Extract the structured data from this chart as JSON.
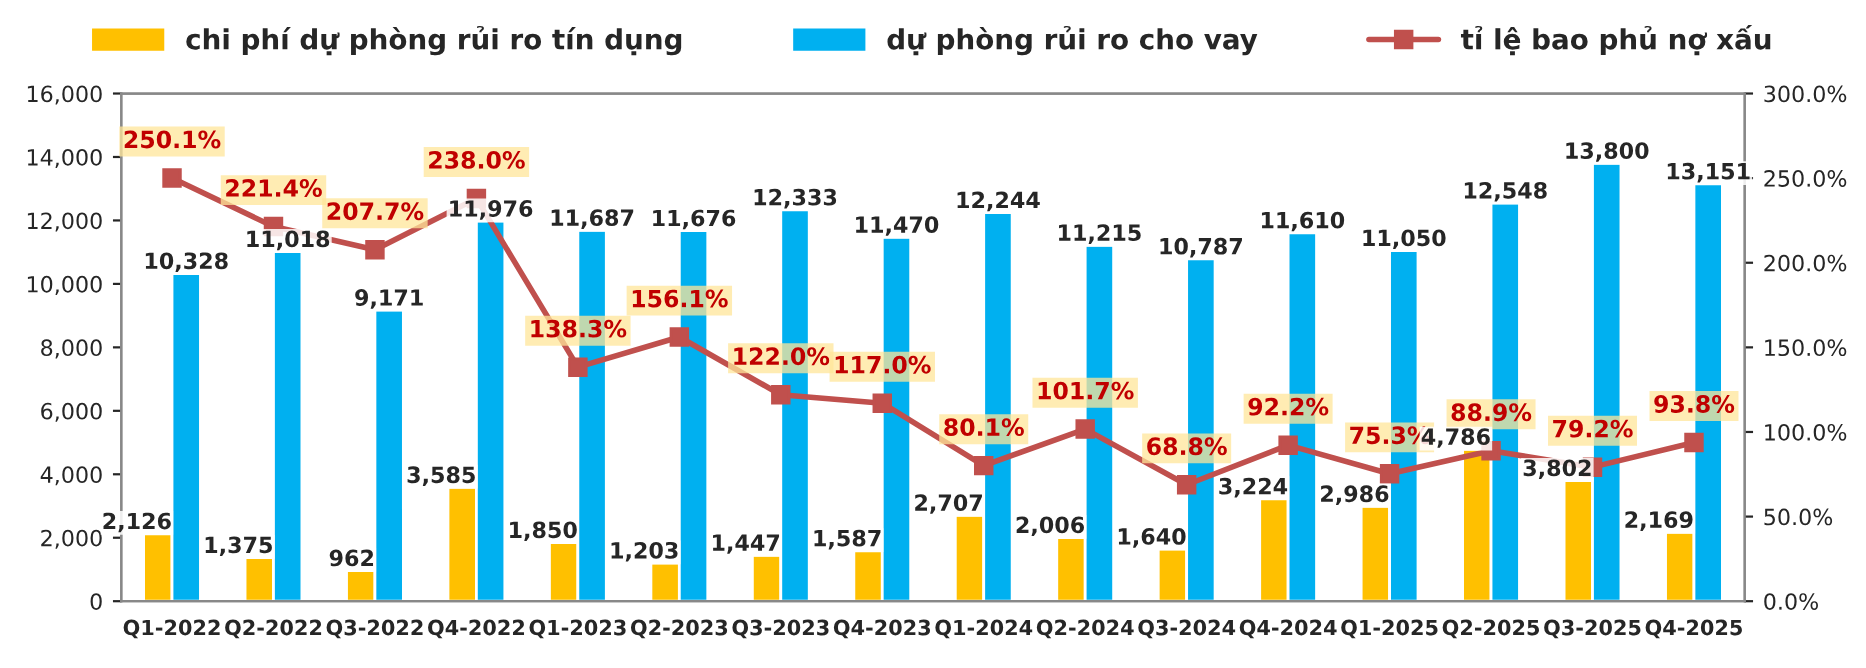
{
  "chart_data": {
    "type": "bar",
    "categories": [
      "Q1-2022",
      "Q2-2022",
      "Q3-2022",
      "Q4-2022",
      "Q1-2023",
      "Q2-2023",
      "Q3-2023",
      "Q4-2023",
      "Q1-2024",
      "Q2-2024",
      "Q3-2024",
      "Q4-2024",
      "Q1-2025",
      "Q2-2025",
      "Q3-2025",
      "Q4-2025"
    ],
    "series": [
      {
        "name": "chi phí dự phòng rủi ro tín dụng",
        "color": "#ffc000",
        "values": [
          2126,
          1375,
          962,
          3585,
          1850,
          1203,
          1447,
          1587,
          2707,
          2006,
          1640,
          3224,
          2986,
          4786,
          3802,
          2169
        ],
        "value_labels": [
          "2,126",
          "1,375",
          "962",
          "3,585",
          "1,850",
          "1,203",
          "1,447",
          "1,587",
          "2,707",
          "2,006",
          "1,640",
          "3,224",
          "2,986",
          "4,786",
          "3,802",
          "2,169"
        ]
      },
      {
        "name": "dự phòng rủi ro cho vay",
        "color": "#00b0f0",
        "values": [
          10328,
          11018,
          9171,
          11976,
          11687,
          11676,
          12333,
          11470,
          12244,
          11215,
          10787,
          11610,
          11050,
          12548,
          13800,
          13151
        ],
        "value_labels": [
          "10,328",
          "11,018",
          "9,171",
          "11,976",
          "11,687",
          "11,676",
          "12,333",
          "11,470",
          "12,244",
          "11,215",
          "10,787",
          "11,610",
          "11,050",
          "12,548",
          "13,800",
          "13,151"
        ]
      },
      {
        "name": "tỉ lệ bao phủ nợ xấu",
        "color": "#c0504d",
        "type": "line",
        "axis": "y2",
        "values": [
          250.1,
          221.4,
          207.7,
          238.0,
          138.3,
          156.1,
          122.0,
          117.0,
          80.1,
          101.7,
          68.8,
          92.2,
          75.3,
          88.9,
          79.2,
          93.8
        ],
        "value_labels": [
          "250.1%",
          "221.4%",
          "207.7%",
          "238.0%",
          "138.3%",
          "156.1%",
          "122.0%",
          "117.0%",
          "80.1%",
          "101.7%",
          "68.8%",
          "92.2%",
          "75.3%",
          "88.9%",
          "79.2%",
          "93.8%"
        ]
      }
    ],
    "ylim": [
      0,
      16000
    ],
    "yticks": [
      {
        "value": 0,
        "label": "0"
      },
      {
        "value": 2000,
        "label": "2,000"
      },
      {
        "value": 4000,
        "label": "4,000"
      },
      {
        "value": 6000,
        "label": "6,000"
      },
      {
        "value": 8000,
        "label": "8,000"
      },
      {
        "value": 10000,
        "label": "10,000"
      },
      {
        "value": 12000,
        "label": "12,000"
      },
      {
        "value": 14000,
        "label": "14,000"
      },
      {
        "value": 16000,
        "label": "16,000"
      }
    ],
    "y2lim": [
      0,
      300
    ],
    "y2ticks": [
      {
        "value": 0,
        "label": "0.0%"
      },
      {
        "value": 50,
        "label": "50.0%"
      },
      {
        "value": 100,
        "label": "100.0%"
      },
      {
        "value": 150,
        "label": "150.0%"
      },
      {
        "value": 200,
        "label": "200.0%"
      },
      {
        "value": 250,
        "label": "250.0%"
      },
      {
        "value": 300,
        "label": "300.0%"
      }
    ],
    "marker": "square",
    "grid": false,
    "legend": "top"
  }
}
